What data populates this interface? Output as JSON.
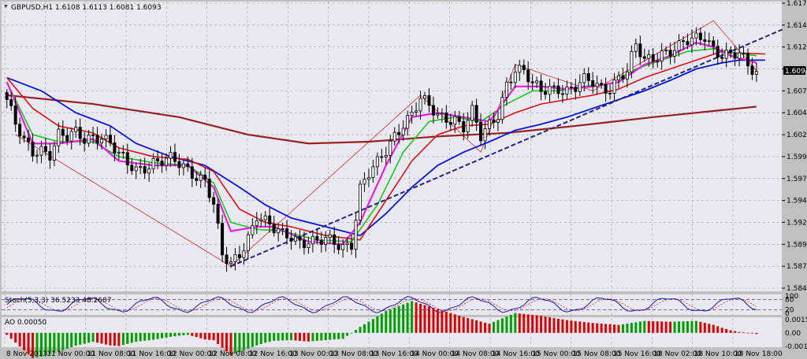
{
  "window": {
    "title_icon": "chart-window-icon"
  },
  "panels": {
    "main_header": "GBPUSD,H1  1.6108 1.6113 1.6081 1.6093",
    "stoch_header": "Stoch(5,3,3) 36.5233 48.2687",
    "ao_header": "AO 0.00050"
  },
  "colors": {
    "bg": "#c0c0c0",
    "plot_bg": "#e9e9f2",
    "grid": "#9a9aa8",
    "candle": "#000000",
    "ma_blue": "#0a14d8",
    "ma_red": "#e01010",
    "ma_green": "#18c818",
    "ma_magenta": "#e81ee0",
    "ma_darkred": "#962020",
    "ao_up": "#00a000",
    "ao_down": "#e00000",
    "trendline": "#24247a"
  },
  "chart_data": [
    {
      "type": "candlestick",
      "title": "GBPUSD,H1",
      "ohlc_header": {
        "open": 1.6108,
        "high": 1.6113,
        "low": 1.6081,
        "close": 1.6093
      },
      "current_price_label": "1.6093",
      "y_ticks": [
        "1.6170",
        "1.6145",
        "1.6120",
        "1.6095",
        "1.6070",
        "1.6045",
        "1.6020",
        "1.5995",
        "1.5970",
        "1.5945",
        "1.5920",
        "1.5895",
        "1.5870",
        "1.5845"
      ],
      "ylim": [
        1.5845,
        1.617
      ],
      "x_ticks": [
        "8 Nov 2013",
        "11 Nov 00:00",
        "11 Nov 08:00",
        "11 Nov 16:00",
        "12 Nov 00:00",
        "12 Nov 08:00",
        "12 Nov 16:00",
        "13 Nov 00:00",
        "13 Nov 08:00",
        "13 Nov 16:00",
        "14 Nov 00:00",
        "14 Nov 08:00",
        "14 Nov 16:00",
        "15 Nov 00:00",
        "15 Nov 08:00",
        "15 Nov 16:00",
        "18 Nov 02:00",
        "18 Nov 10:00",
        "18 Nov 18:00"
      ],
      "close_path": [
        [
          0,
          1.606
        ],
        [
          2,
          1.603
        ],
        [
          4,
          1.601
        ],
        [
          6,
          1.6
        ],
        [
          8,
          1.6005
        ],
        [
          10,
          1.6
        ],
        [
          12,
          1.602
        ],
        [
          14,
          1.6015
        ],
        [
          16,
          1.602
        ],
        [
          18,
          1.6015
        ],
        [
          20,
          1.602
        ],
        [
          22,
          1.602
        ],
        [
          24,
          1.601
        ],
        [
          26,
          1.5995
        ],
        [
          28,
          1.5985
        ],
        [
          30,
          1.598
        ],
        [
          32,
          1.5985
        ],
        [
          34,
          1.599
        ],
        [
          36,
          1.599
        ],
        [
          38,
          1.599
        ],
        [
          40,
          1.5985
        ],
        [
          42,
          1.598
        ],
        [
          44,
          1.5975
        ],
        [
          46,
          1.597
        ],
        [
          48,
          1.594
        ],
        [
          50,
          1.588
        ],
        [
          52,
          1.587
        ],
        [
          54,
          1.5885
        ],
        [
          56,
          1.5905
        ],
        [
          58,
          1.593
        ],
        [
          60,
          1.592
        ],
        [
          62,
          1.591
        ],
        [
          64,
          1.5905
        ],
        [
          66,
          1.5905
        ],
        [
          68,
          1.59
        ],
        [
          70,
          1.59
        ],
        [
          72,
          1.5897
        ],
        [
          74,
          1.5898
        ],
        [
          76,
          1.5895
        ],
        [
          78,
          1.5893
        ],
        [
          80,
          1.5898
        ],
        [
          82,
          1.596
        ],
        [
          84,
          1.5975
        ],
        [
          86,
          1.5985
        ],
        [
          88,
          1.6
        ],
        [
          90,
          1.602
        ],
        [
          92,
          1.6035
        ],
        [
          94,
          1.6045
        ],
        [
          96,
          1.606
        ],
        [
          98,
          1.605
        ],
        [
          100,
          1.604
        ],
        [
          102,
          1.604
        ],
        [
          104,
          1.604
        ],
        [
          106,
          1.603
        ],
        [
          108,
          1.6045
        ],
        [
          110,
          1.6015
        ],
        [
          112,
          1.603
        ],
        [
          114,
          1.6045
        ],
        [
          116,
          1.608
        ],
        [
          118,
          1.6095
        ],
        [
          120,
          1.609
        ],
        [
          122,
          1.6075
        ],
        [
          124,
          1.607
        ],
        [
          126,
          1.6075
        ],
        [
          128,
          1.6075
        ],
        [
          130,
          1.607
        ],
        [
          132,
          1.6072
        ],
        [
          134,
          1.608
        ],
        [
          136,
          1.608
        ],
        [
          138,
          1.6075
        ],
        [
          140,
          1.6075
        ],
        [
          142,
          1.6085
        ],
        [
          144,
          1.609
        ],
        [
          146,
          1.612
        ],
        [
          148,
          1.6105
        ],
        [
          150,
          1.611
        ],
        [
          152,
          1.6115
        ],
        [
          154,
          1.6115
        ],
        [
          156,
          1.6118
        ],
        [
          158,
          1.6125
        ],
        [
          160,
          1.613
        ],
        [
          162,
          1.6135
        ],
        [
          164,
          1.612
        ],
        [
          166,
          1.611
        ],
        [
          168,
          1.6108
        ],
        [
          170,
          1.611
        ],
        [
          172,
          1.61
        ],
        [
          174,
          1.6093
        ]
      ],
      "ma_paths": {
        "magenta": [
          [
            0,
            1.608
          ],
          [
            6,
            1.601
          ],
          [
            12,
            1.601
          ],
          [
            20,
            1.6015
          ],
          [
            26,
            1.599
          ],
          [
            34,
            1.5985
          ],
          [
            42,
            1.5985
          ],
          [
            48,
            1.596
          ],
          [
            52,
            1.591
          ],
          [
            58,
            1.5915
          ],
          [
            62,
            1.5915
          ],
          [
            70,
            1.5898
          ],
          [
            78,
            1.5895
          ],
          [
            82,
            1.592
          ],
          [
            88,
            1.5985
          ],
          [
            94,
            1.604
          ],
          [
            100,
            1.6045
          ],
          [
            106,
            1.604
          ],
          [
            112,
            1.6035
          ],
          [
            118,
            1.6075
          ],
          [
            124,
            1.6075
          ],
          [
            130,
            1.6072
          ],
          [
            136,
            1.6075
          ],
          [
            142,
            1.608
          ],
          [
            148,
            1.61
          ],
          [
            154,
            1.611
          ],
          [
            160,
            1.6125
          ],
          [
            164,
            1.612
          ],
          [
            168,
            1.611
          ],
          [
            174,
            1.6102
          ]
        ],
        "green": [
          [
            0,
            1.608
          ],
          [
            6,
            1.602
          ],
          [
            12,
            1.6012
          ],
          [
            20,
            1.6012
          ],
          [
            26,
            1.5995
          ],
          [
            34,
            1.5988
          ],
          [
            42,
            1.5985
          ],
          [
            48,
            1.5965
          ],
          [
            52,
            1.592
          ],
          [
            58,
            1.5912
          ],
          [
            64,
            1.591
          ],
          [
            72,
            1.59
          ],
          [
            80,
            1.5898
          ],
          [
            86,
            1.594
          ],
          [
            92,
            1.6
          ],
          [
            98,
            1.6035
          ],
          [
            104,
            1.604
          ],
          [
            110,
            1.6035
          ],
          [
            116,
            1.6055
          ],
          [
            122,
            1.607
          ],
          [
            128,
            1.607
          ],
          [
            134,
            1.6075
          ],
          [
            140,
            1.6078
          ],
          [
            146,
            1.6095
          ],
          [
            152,
            1.6105
          ],
          [
            158,
            1.6115
          ],
          [
            164,
            1.6118
          ],
          [
            168,
            1.6114
          ],
          [
            174,
            1.611
          ]
        ],
        "red": [
          [
            0,
            1.6085
          ],
          [
            6,
            1.605
          ],
          [
            12,
            1.603
          ],
          [
            20,
            1.6022
          ],
          [
            26,
            1.6005
          ],
          [
            34,
            1.5995
          ],
          [
            42,
            1.5992
          ],
          [
            48,
            1.5978
          ],
          [
            54,
            1.5935
          ],
          [
            60,
            1.592
          ],
          [
            66,
            1.5915
          ],
          [
            74,
            1.5905
          ],
          [
            82,
            1.59
          ],
          [
            88,
            1.5945
          ],
          [
            94,
            1.599
          ],
          [
            100,
            1.602
          ],
          [
            106,
            1.603
          ],
          [
            112,
            1.6032
          ],
          [
            118,
            1.6045
          ],
          [
            124,
            1.6055
          ],
          [
            130,
            1.606
          ],
          [
            136,
            1.6065
          ],
          [
            142,
            1.6072
          ],
          [
            148,
            1.6085
          ],
          [
            154,
            1.6095
          ],
          [
            160,
            1.6105
          ],
          [
            166,
            1.6115
          ],
          [
            170,
            1.6113
          ],
          [
            176,
            1.6112
          ]
        ],
        "blue": [
          [
            0,
            1.6085
          ],
          [
            8,
            1.607
          ],
          [
            16,
            1.6045
          ],
          [
            24,
            1.603
          ],
          [
            30,
            1.601
          ],
          [
            38,
            1.5995
          ],
          [
            46,
            1.5985
          ],
          [
            54,
            1.596
          ],
          [
            60,
            1.594
          ],
          [
            66,
            1.5925
          ],
          [
            74,
            1.5915
          ],
          [
            82,
            1.5905
          ],
          [
            88,
            1.593
          ],
          [
            94,
            1.596
          ],
          [
            100,
            1.5985
          ],
          [
            106,
            1.6
          ],
          [
            112,
            1.6012
          ],
          [
            118,
            1.6025
          ],
          [
            124,
            1.6032
          ],
          [
            130,
            1.604
          ],
          [
            136,
            1.605
          ],
          [
            142,
            1.606
          ],
          [
            148,
            1.607
          ],
          [
            154,
            1.6082
          ],
          [
            160,
            1.6095
          ],
          [
            166,
            1.6102
          ],
          [
            170,
            1.6105
          ],
          [
            176,
            1.6105
          ]
        ],
        "darkred": [
          [
            0,
            1.6065
          ],
          [
            20,
            1.6055
          ],
          [
            40,
            1.604
          ],
          [
            56,
            1.602
          ],
          [
            70,
            1.601
          ],
          [
            84,
            1.6012
          ],
          [
            100,
            1.6018
          ],
          [
            116,
            1.6022
          ],
          [
            132,
            1.603
          ],
          [
            150,
            1.604
          ],
          [
            166,
            1.6048
          ],
          [
            174,
            1.6052
          ]
        ]
      }
    },
    {
      "type": "line",
      "title": "Stoch(5,3,3)",
      "k_value": 36.5233,
      "d_value": 48.2687,
      "levels": [
        80,
        20
      ],
      "y_ticks": [
        "100",
        "80",
        "20",
        "0"
      ],
      "ylim": [
        0,
        100
      ]
    },
    {
      "type": "bar",
      "title": "AO",
      "current_value": 0.0005,
      "y_ticks": [
        "0.00150",
        "0.00",
        "-0.00154"
      ],
      "ylim": [
        -0.00154,
        0.0015
      ]
    }
  ]
}
